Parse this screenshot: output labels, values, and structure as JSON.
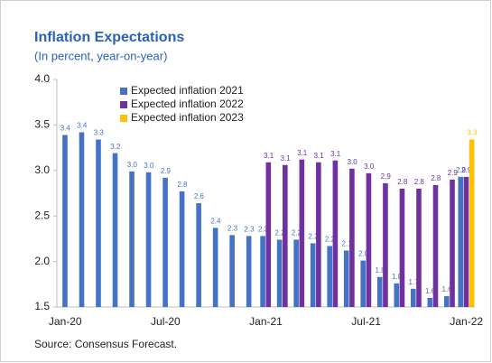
{
  "chart_data": {
    "type": "bar",
    "title": "Inflation Expectations",
    "subtitle": "(In percent, year-on-year)",
    "source": "Source: Consensus Forecast.",
    "categories": [
      "Jan-20",
      null,
      null,
      null,
      null,
      null,
      "Jul-20",
      null,
      null,
      null,
      null,
      null,
      "Jan-21",
      null,
      null,
      null,
      null,
      null,
      "Jul-21",
      null,
      null,
      null,
      null,
      null,
      "Jan-22"
    ],
    "series": [
      {
        "name": "Expected inflation 2021",
        "color": "#4472c4",
        "values": [
          3.39,
          3.42,
          3.34,
          3.19,
          2.99,
          2.98,
          2.92,
          2.77,
          2.64,
          2.37,
          2.29,
          2.28,
          2.28,
          2.24,
          2.24,
          2.2,
          2.17,
          2.12,
          2.01,
          1.83,
          1.76,
          1.7,
          1.6,
          1.62,
          2.93
        ],
        "value_labels": [
          "3.4",
          "3.4",
          "3.3",
          "3.2",
          "3.0",
          "3.0",
          "2.9",
          "2.8",
          "2.6",
          "2.4",
          "2.3",
          "2.3",
          "2.3",
          "2.2",
          "2.2",
          "2.2",
          "2.2",
          "2.1",
          "2.0",
          "1.8",
          "1.8",
          "1.7",
          "1.6",
          "1.6",
          "2.9"
        ]
      },
      {
        "name": "Expected inflation 2022",
        "color": "#7030a0",
        "values": [
          null,
          null,
          null,
          null,
          null,
          null,
          null,
          null,
          null,
          null,
          null,
          null,
          3.09,
          3.06,
          3.12,
          3.09,
          3.11,
          3.02,
          2.97,
          2.86,
          2.8,
          2.8,
          2.84,
          2.9,
          2.93
        ],
        "value_labels": [
          null,
          null,
          null,
          null,
          null,
          null,
          null,
          null,
          null,
          null,
          null,
          null,
          "3.1",
          "3.1",
          "3.1",
          "3.1",
          "3.1",
          "3.0",
          "3.0",
          "2.9",
          "2.8",
          "2.8",
          "2.8",
          "2.9",
          "2.9"
        ]
      },
      {
        "name": "Expected inflation 2023",
        "color": "#ffc000",
        "values": [
          null,
          null,
          null,
          null,
          null,
          null,
          null,
          null,
          null,
          null,
          null,
          null,
          null,
          null,
          null,
          null,
          null,
          null,
          null,
          null,
          null,
          null,
          null,
          null,
          3.34
        ],
        "value_labels": [
          null,
          null,
          null,
          null,
          null,
          null,
          null,
          null,
          null,
          null,
          null,
          null,
          null,
          null,
          null,
          null,
          null,
          null,
          null,
          null,
          null,
          null,
          null,
          null,
          "3.3"
        ]
      }
    ],
    "ylim": [
      1.5,
      4.0
    ],
    "yticks": [
      1.5,
      {
        "value": 2,
        "label": "2.0"
      },
      2.5,
      {
        "value": 3,
        "label": "3.0"
      },
      3.5,
      {
        "value": 4,
        "label": "4.0"
      }
    ],
    "grid": false,
    "legend": "upper center"
  }
}
